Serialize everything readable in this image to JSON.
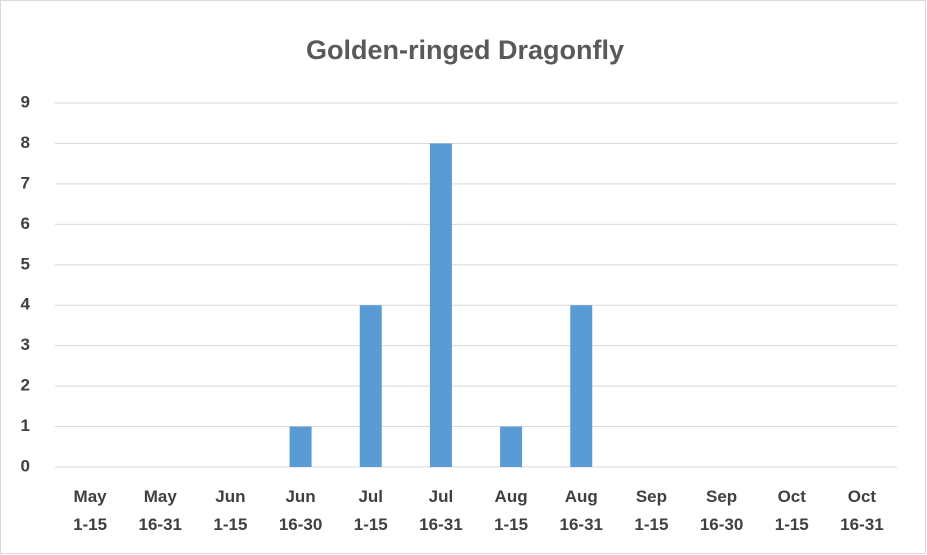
{
  "chart_data": {
    "type": "bar",
    "title": "Golden-ringed Dragonfly",
    "categories": [
      [
        "May",
        "1-15"
      ],
      [
        "May",
        "16-31"
      ],
      [
        "Jun",
        "1-15"
      ],
      [
        "Jun",
        "16-30"
      ],
      [
        "Jul",
        "1-15"
      ],
      [
        "Jul",
        "16-31"
      ],
      [
        "Aug",
        "1-15"
      ],
      [
        "Aug",
        "16-31"
      ],
      [
        "Sep",
        "1-15"
      ],
      [
        "Sep",
        "16-30"
      ],
      [
        "Oct",
        "1-15"
      ],
      [
        "Oct",
        "16-31"
      ]
    ],
    "values": [
      0,
      0,
      0,
      1,
      4,
      8,
      1,
      4,
      0,
      0,
      0,
      0
    ],
    "color": "#5b9bd5",
    "ylim": [
      0,
      9
    ],
    "yticks": [
      0,
      1,
      2,
      3,
      4,
      5,
      6,
      7,
      8,
      9
    ],
    "grid": true
  }
}
